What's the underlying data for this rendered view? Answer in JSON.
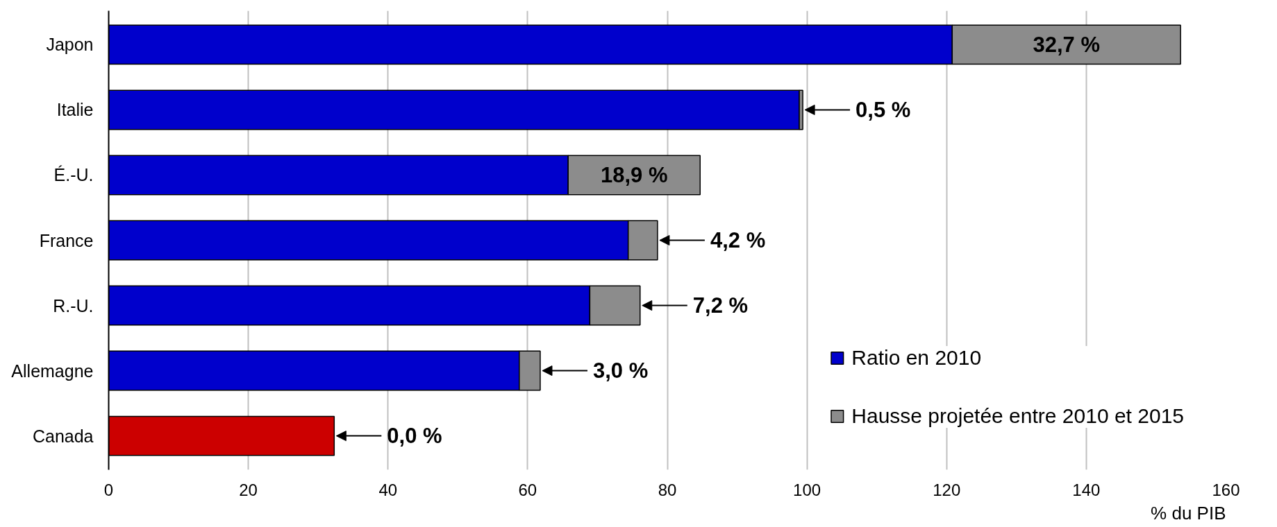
{
  "chart_data": {
    "type": "bar",
    "orientation": "horizontal",
    "stacked": true,
    "categories": [
      "Japon",
      "Italie",
      "É.-U.",
      "France",
      "R.-U.",
      "Allemagne",
      "Canada"
    ],
    "series": [
      {
        "name": "Ratio en 2010",
        "colors": [
          "#0000cc",
          "#0000cc",
          "#0000cc",
          "#0000cc",
          "#0000cc",
          "#0000cc",
          "#cc0000"
        ],
        "values": [
          120.8,
          98.9,
          65.8,
          74.4,
          68.9,
          58.8,
          32.3
        ]
      },
      {
        "name": "Hausse projetée entre 2010 et 2015",
        "color": "#8c8c8c",
        "values": [
          32.7,
          0.5,
          18.9,
          4.2,
          7.2,
          3.0,
          0.0
        ],
        "value_labels": [
          "32,7 %",
          "0,5 %",
          "18,9 %",
          "4,2 %",
          "7,2 %",
          "3,0 %",
          "0,0 %"
        ]
      }
    ],
    "xlabel": "% du PIB",
    "xlim": [
      0,
      160
    ],
    "xticks": [
      0,
      20,
      40,
      60,
      80,
      100,
      120,
      140,
      160
    ],
    "grid": "x",
    "legend": "bottom right"
  }
}
